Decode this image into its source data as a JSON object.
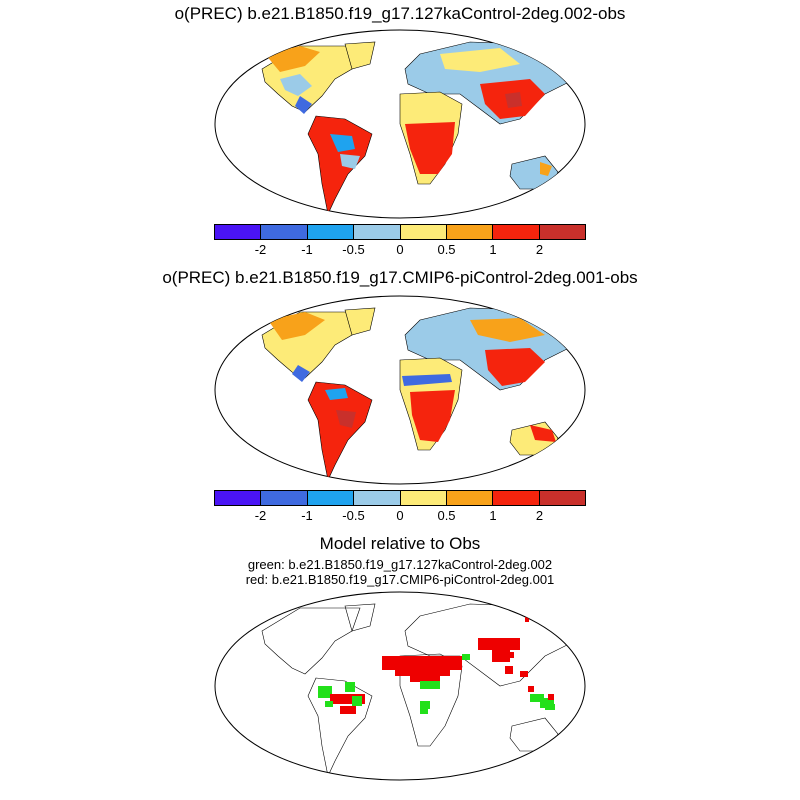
{
  "panels": [
    {
      "title": "o(PREC) b.e21.B1850.f19_g17.127kaControl-2deg.002-obs"
    },
    {
      "title": "o(PREC) b.e21.B1850.f19_g17.CMIP6-piControl-2deg.001-obs"
    }
  ],
  "colorbar": {
    "colors": [
      "#4a14f5",
      "#3f6ae0",
      "#1fa3ef",
      "#9bcbe8",
      "#fdeb78",
      "#f8a21a",
      "#f5240d",
      "#c9302b"
    ],
    "tick_labels": [
      "-2",
      "-1",
      "-0.5",
      "0",
      "0.5",
      "1",
      "2"
    ]
  },
  "comparison": {
    "title": "Model relative to Obs",
    "line1": "green: b.e21.B1850.f19_g17.127kaControl-2deg.002",
    "line2": "red: b.e21.B1850.f19_g17.CMIP6-piControl-2deg.001",
    "colors": {
      "green": "#22e01a",
      "red": "#ee0000"
    }
  }
}
